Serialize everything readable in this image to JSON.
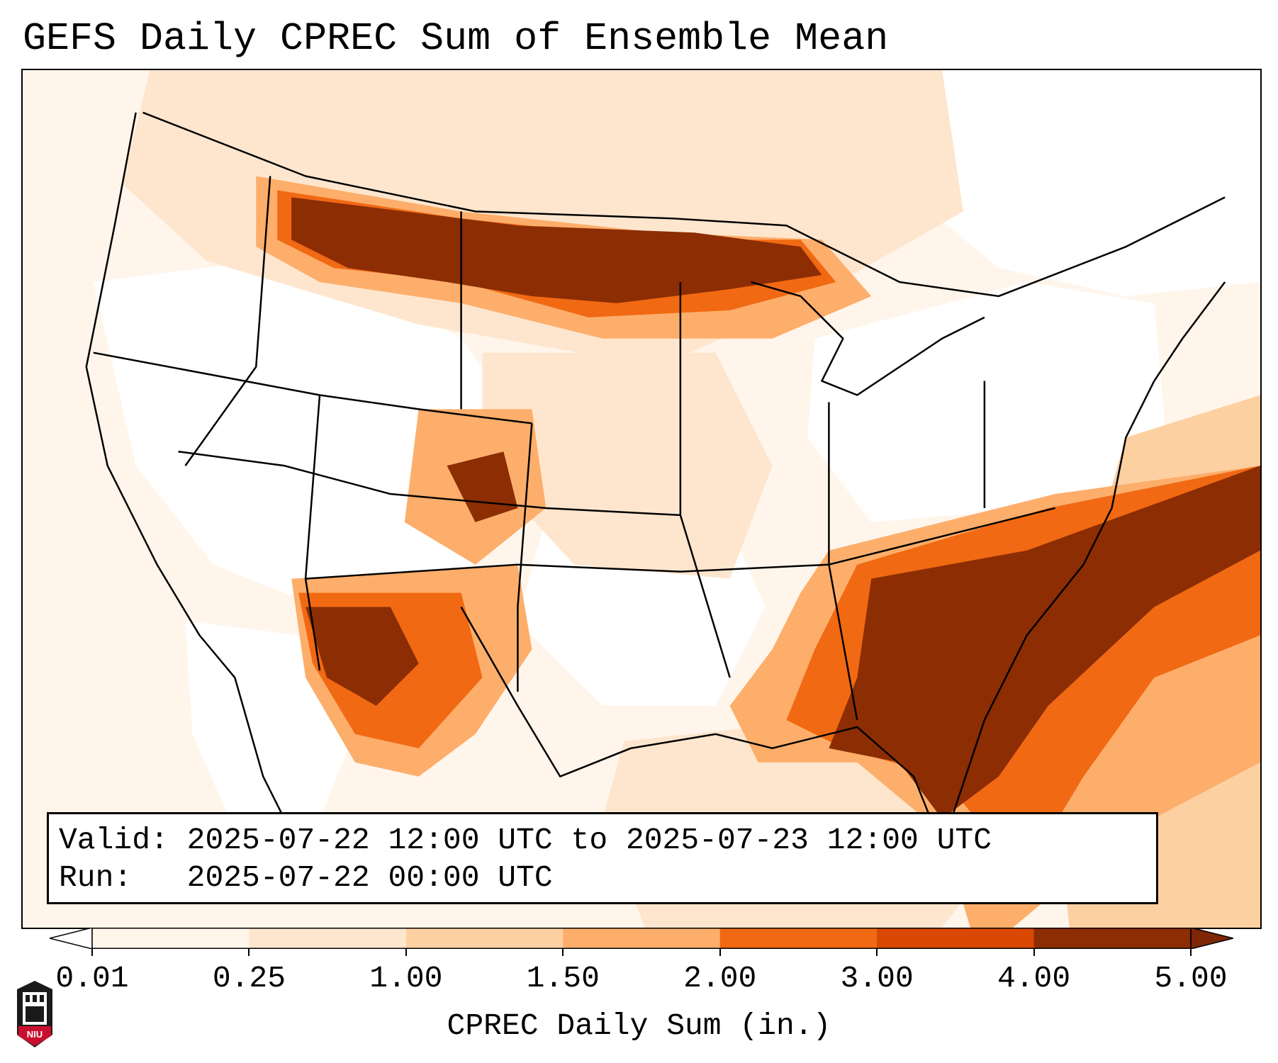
{
  "title": "GEFS Daily CPREC Sum of Ensemble Mean",
  "info": {
    "valid_label": "Valid:",
    "valid_value": "2025-07-22 12:00 UTC to 2025-07-23 12:00 UTC",
    "run_label": "Run:",
    "run_value": "2025-07-22 00:00 UTC"
  },
  "colorbar": {
    "label": "CPREC Daily Sum (in.)",
    "ticks": [
      "0.01",
      "0.25",
      "1.00",
      "1.50",
      "2.00",
      "3.00",
      "4.00",
      "5.00"
    ],
    "colors": [
      "#fff5eb",
      "#fee6ce",
      "#fdd0a2",
      "#fdae6b",
      "#f16913",
      "#d94801",
      "#8c2d04"
    ],
    "under_color": "#ffffff",
    "over_color": "#7f2704"
  },
  "map": {
    "projection": "Lambert Conformal",
    "region": "CONUS",
    "colors": {
      "very_light": "#fff5eb",
      "light": "#fee6ce",
      "light_mid": "#fdd0a2",
      "mid": "#fdae6b",
      "orange": "#f16913",
      "dark_orange": "#d94801",
      "brown": "#8c2d04"
    }
  },
  "logo": {
    "text": "NIU",
    "icon": "niu-seal-icon"
  }
}
